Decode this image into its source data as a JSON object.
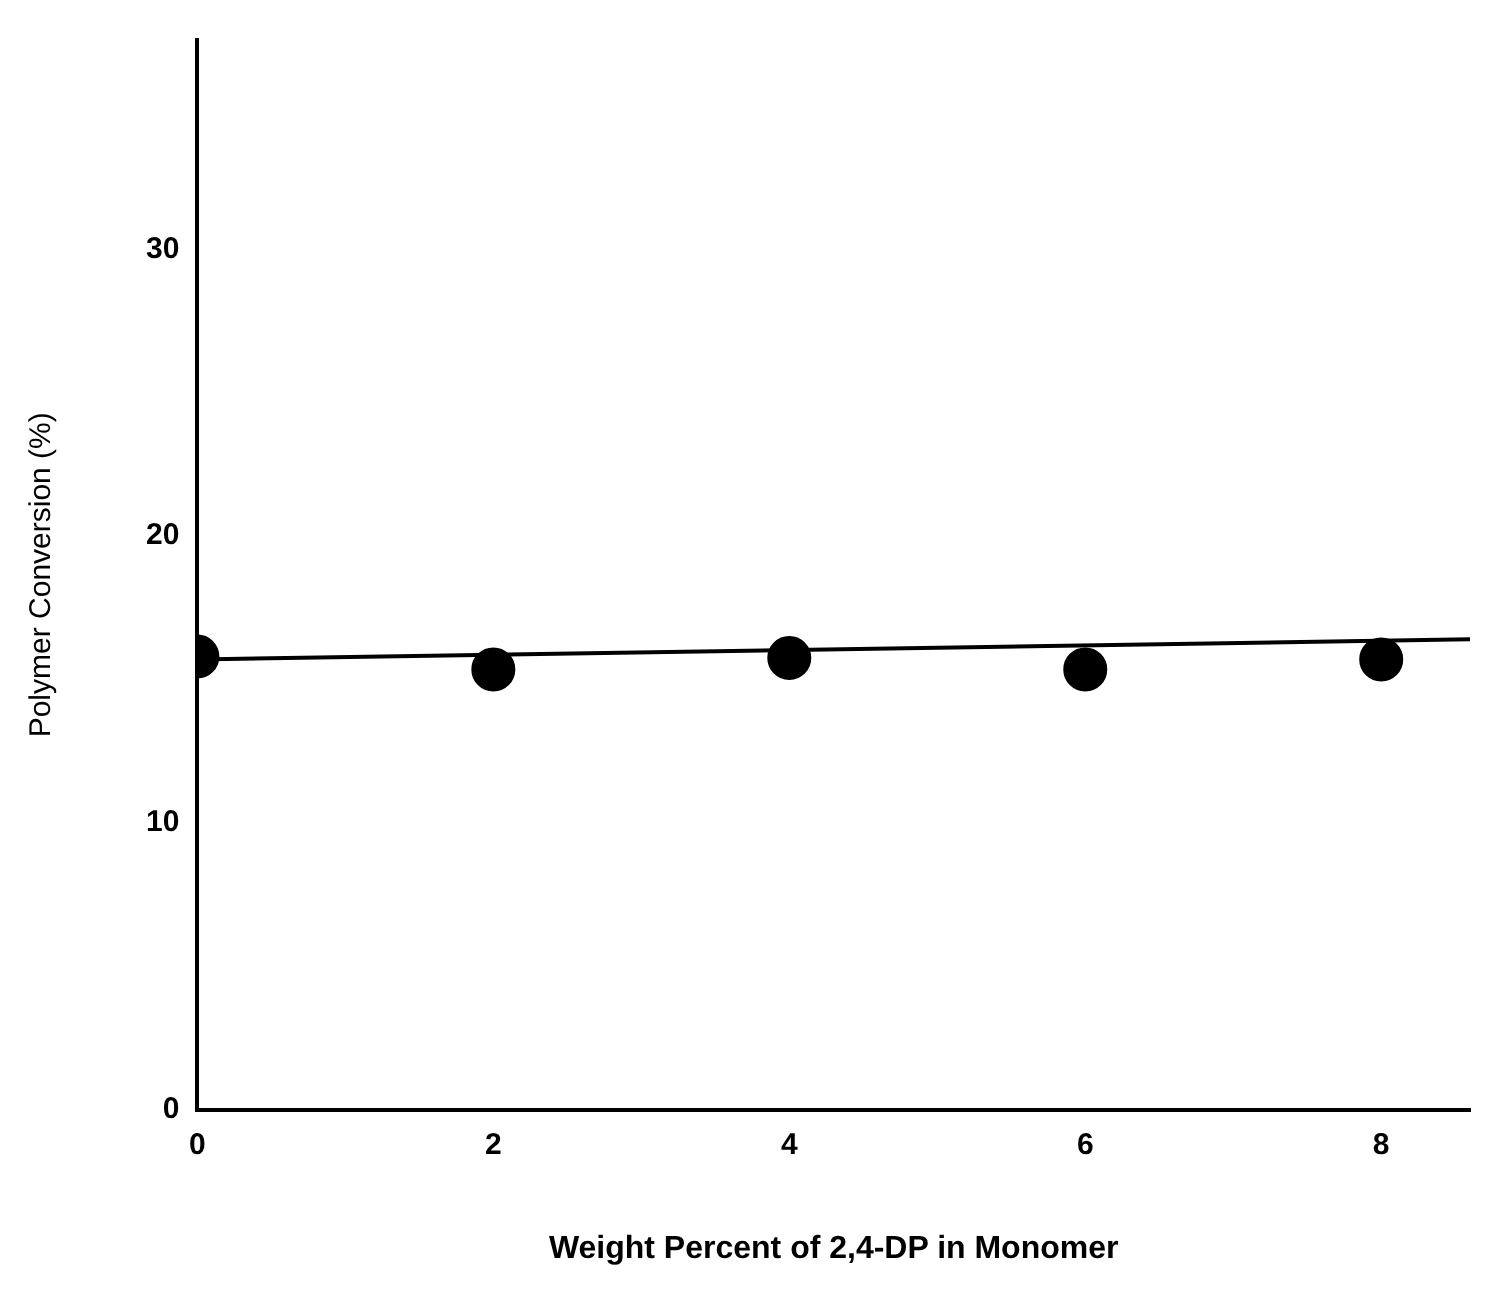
{
  "chart_data": {
    "type": "scatter",
    "xlabel": "Weight Percent of 2,4-DP in Monomer",
    "ylabel": "Polymer Conversion (%)",
    "xlim": [
      0,
      8.6
    ],
    "xticks": [
      0,
      2,
      4,
      6,
      8
    ],
    "ylim": [
      0,
      37.3
    ],
    "yticks": [
      0,
      10,
      20,
      30
    ],
    "grid": false,
    "legend": false,
    "marker": "circle",
    "series": [
      {
        "color": "#000000",
        "x": [
          0,
          2,
          4,
          6,
          8
        ],
        "values": [
          15.8,
          15.35,
          15.75,
          15.35,
          15.7
        ]
      },
      {
        "type": "line",
        "color": "#000000",
        "marker": "none",
        "line_style": "solid",
        "x": [
          0,
          8.6
        ],
        "values": [
          15.7,
          16.4
        ]
      }
    ]
  }
}
